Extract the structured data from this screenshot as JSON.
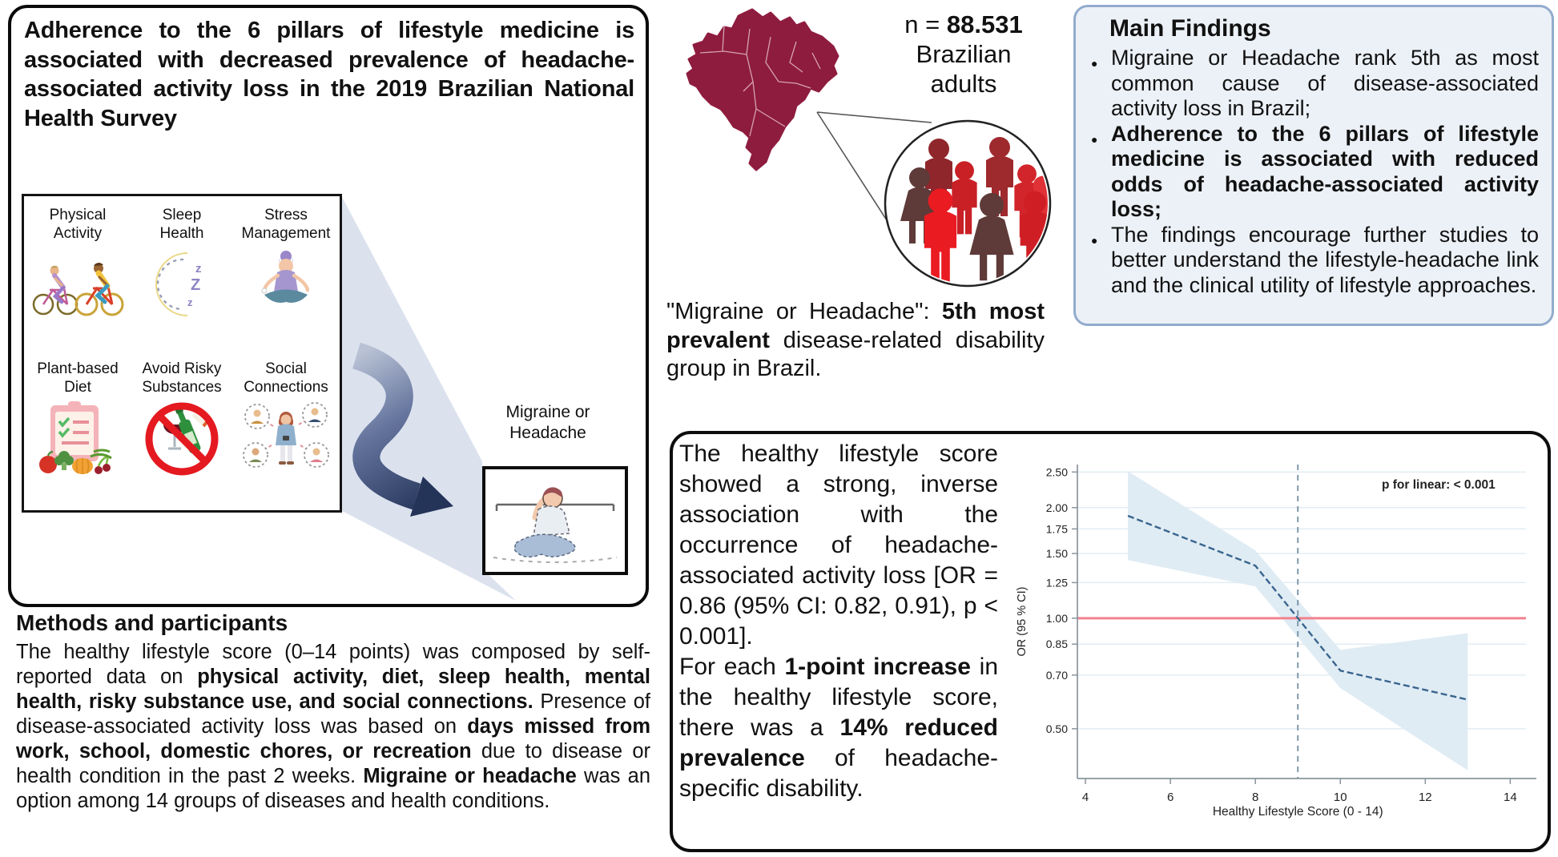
{
  "header": {
    "title": "Adherence to the 6 pillars of lifestyle medicine is associated with decreased prevalence of headache-associated activity loss in the 2019 Brazilian National Health Survey"
  },
  "pillars": {
    "items": [
      {
        "label": "Physical\nActivity",
        "icon": "bicycles-icon"
      },
      {
        "label": "Sleep\nHealth",
        "icon": "crescent-moon-icon"
      },
      {
        "label": "Stress\nManagement",
        "icon": "meditation-icon"
      },
      {
        "label": "Plant-based\nDiet",
        "icon": "clipboard-vegetables-icon"
      },
      {
        "label": "Avoid Risky\nSubstances",
        "icon": "no-alcohol-icon"
      },
      {
        "label": "Social\nConnections",
        "icon": "social-people-icon"
      }
    ],
    "outcome_label": "Migraine or\nHeadache",
    "outcome_icon": "migraine-person-icon"
  },
  "methods": {
    "heading": "Methods and participants",
    "body": [
      {
        "t": "The healthy lifestyle score (0–14 points) was composed by self-reported data on "
      },
      {
        "t": "physical activity, diet, sleep health, mental health, risky substance use, and social connections.",
        "b": true
      },
      {
        "t": " Presence of disease-associated activity loss was based on "
      },
      {
        "t": "days missed from work, school, domestic chores, or recreation",
        "b": true
      },
      {
        "t": " due to disease or health condition in the past 2 weeks. "
      },
      {
        "t": "Migraine or headache",
        "b": true
      },
      {
        "t": " was an option among 14 groups of diseases and health conditions."
      }
    ]
  },
  "population": {
    "n_line": [
      {
        "t": "n = "
      },
      {
        "t": "88.531",
        "b": true
      }
    ],
    "line2": "Brazilian",
    "line3": "adults",
    "map_icon": "brazil-map-icon",
    "people_icon": "population-circle-icon",
    "map_color": "#8e1c3f",
    "caption": [
      {
        "t": "\"Migraine or Headache\": "
      },
      {
        "t": "5th most prevalent",
        "b": true
      },
      {
        "t": " disease-related disability group in Brazil."
      }
    ]
  },
  "findings": {
    "title": "Main Findings",
    "colors": {
      "bg": "#ecf1f7",
      "border": "#92abce"
    },
    "bullets": [
      {
        "segments": [
          {
            "t": "Migraine or Headache rank 5th as most common cause of disease-associated activity loss in Brazil;"
          }
        ]
      },
      {
        "segments": [
          {
            "t": "Adherence to the 6 pillars of lifestyle medicine is associated with reduced odds of headache-associated activity loss;",
            "b": true
          }
        ]
      },
      {
        "segments": [
          {
            "t": "The findings encourage further studies to better understand the lifestyle-headache link and the clinical utility of lifestyle approaches."
          }
        ]
      }
    ]
  },
  "results_panel": {
    "para1": [
      {
        "t": "The healthy lifestyle score showed a strong, inverse association with the occurrence of headache-associated activity loss [OR = 0.86 (95% CI: 0.82, 0.91), p < 0.001]."
      }
    ],
    "para2": [
      {
        "t": "For each "
      },
      {
        "t": "1-point increase",
        "b": true
      },
      {
        "t": " in the healthy lifestyle score, there was a "
      },
      {
        "t": "14% reduced prevalence",
        "b": true
      },
      {
        "t": " of headache-specific disability."
      }
    ]
  },
  "chart_data": {
    "type": "line",
    "title": "",
    "xlabel": "Healthy Lifestyle Score (0 - 14)",
    "ylabel": "OR (95 % CI)",
    "x_ticks": [
      4,
      6,
      8,
      10,
      12,
      14
    ],
    "y_ticks": [
      2.5,
      2.0,
      1.75,
      1.5,
      1.25,
      1.0,
      0.85,
      0.7,
      0.5
    ],
    "y_scale": "log",
    "x_range": [
      3.81,
      14.37
    ],
    "y_range": [
      0.366,
      2.62
    ],
    "grid": true,
    "annotation": "p for linear: < 0.001",
    "series": [
      {
        "name": "OR",
        "x": [
          5,
          8,
          10,
          13
        ],
        "y": [
          1.9,
          1.39,
          0.72,
          0.6
        ]
      }
    ],
    "band": {
      "x": [
        5,
        8,
        10,
        13
      ],
      "upper": [
        2.51,
        1.53,
        0.82,
        0.91
      ],
      "lower": [
        1.44,
        1.22,
        0.645,
        0.385
      ]
    },
    "reference_line_y": 1.0,
    "vline_x": 9,
    "colors": {
      "line": "#3a658f",
      "band": "#ddeaf3",
      "reference": "#f2818e",
      "vline": "#7e98ac",
      "grid": "#e2edf3",
      "axis": "#8a949c"
    }
  }
}
